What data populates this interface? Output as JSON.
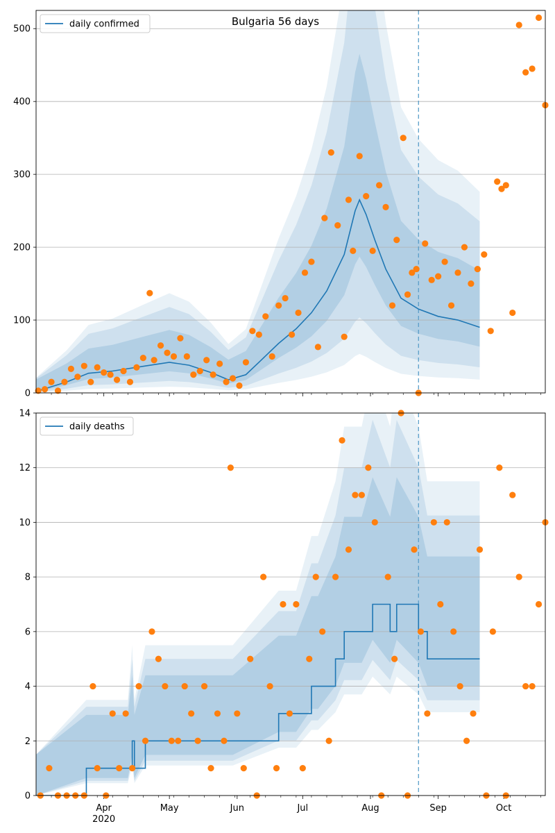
{
  "chart_data": [
    {
      "type": "line",
      "title": "Bulgaria 56 days",
      "legend": {
        "label": "daily confirmed",
        "placement": "upper-left"
      },
      "x_start": "2020-03-01",
      "x_end": "2020-10-20",
      "ylim": [
        0,
        525
      ],
      "yticks": [
        0,
        100,
        200,
        300,
        400,
        500
      ],
      "grid": "horizontal",
      "forecast_start": "2020-08-23",
      "series": [
        {
          "name": "daily confirmed",
          "style": "line",
          "color": "#1f77b4",
          "x": [
            "2020-03-01",
            "2020-03-15",
            "2020-03-25",
            "2020-04-05",
            "2020-04-20",
            "2020-05-01",
            "2020-05-10",
            "2020-05-20",
            "2020-05-28",
            "2020-06-05",
            "2020-06-12",
            "2020-06-20",
            "2020-06-28",
            "2020-07-05",
            "2020-07-12",
            "2020-07-20",
            "2020-07-25",
            "2020-07-27",
            "2020-07-30",
            "2020-08-03",
            "2020-08-08",
            "2020-08-15",
            "2020-08-23",
            "2020-09-01",
            "2020-09-10",
            "2020-09-20"
          ],
          "y": [
            2,
            15,
            27,
            30,
            37,
            42,
            38,
            28,
            18,
            25,
            45,
            68,
            88,
            110,
            140,
            190,
            250,
            265,
            245,
            210,
            170,
            130,
            115,
            105,
            100,
            90
          ]
        },
        {
          "name": "observed",
          "style": "scatter",
          "color": "#ff7f0e",
          "x": [
            "2020-03-02",
            "2020-03-05",
            "2020-03-08",
            "2020-03-11",
            "2020-03-14",
            "2020-03-17",
            "2020-03-20",
            "2020-03-23",
            "2020-03-26",
            "2020-03-29",
            "2020-04-01",
            "2020-04-04",
            "2020-04-07",
            "2020-04-10",
            "2020-04-13",
            "2020-04-16",
            "2020-04-19",
            "2020-04-22",
            "2020-04-24",
            "2020-04-27",
            "2020-04-30",
            "2020-05-03",
            "2020-05-06",
            "2020-05-09",
            "2020-05-12",
            "2020-05-15",
            "2020-05-18",
            "2020-05-21",
            "2020-05-24",
            "2020-05-27",
            "2020-05-30",
            "2020-06-02",
            "2020-06-05",
            "2020-06-08",
            "2020-06-11",
            "2020-06-14",
            "2020-06-17",
            "2020-06-20",
            "2020-06-23",
            "2020-06-26",
            "2020-06-29",
            "2020-07-02",
            "2020-07-05",
            "2020-07-08",
            "2020-07-11",
            "2020-07-14",
            "2020-07-17",
            "2020-07-20",
            "2020-07-22",
            "2020-07-24",
            "2020-07-27",
            "2020-07-30",
            "2020-08-02",
            "2020-08-05",
            "2020-08-08",
            "2020-08-11",
            "2020-08-13",
            "2020-08-16",
            "2020-08-18",
            "2020-08-20",
            "2020-08-22",
            "2020-08-23",
            "2020-08-26",
            "2020-08-29",
            "2020-09-01",
            "2020-09-04",
            "2020-09-07",
            "2020-09-10",
            "2020-09-13",
            "2020-09-16",
            "2020-09-19",
            "2020-09-22",
            "2020-09-25",
            "2020-09-28",
            "2020-09-30",
            "2020-10-02",
            "2020-10-05",
            "2020-10-08",
            "2020-10-11",
            "2020-10-14",
            "2020-10-17",
            "2020-10-20"
          ],
          "y": [
            3,
            5,
            15,
            3,
            15,
            33,
            22,
            37,
            15,
            35,
            28,
            25,
            18,
            30,
            15,
            35,
            48,
            137,
            45,
            65,
            55,
            50,
            75,
            50,
            25,
            30,
            45,
            25,
            40,
            15,
            20,
            10,
            42,
            85,
            80,
            105,
            50,
            120,
            130,
            80,
            110,
            165,
            180,
            63,
            240,
            330,
            230,
            77,
            265,
            195,
            325,
            270,
            195,
            285,
            255,
            120,
            210,
            350,
            135,
            165,
            170,
            0,
            205,
            155,
            160,
            180,
            120,
            165,
            200,
            150,
            170,
            190,
            85,
            290,
            280,
            285,
            110,
            505,
            440,
            445,
            515,
            395
          ]
        }
      ]
    },
    {
      "type": "line",
      "legend": {
        "label": "daily deaths",
        "placement": "upper-left"
      },
      "x_start": "2020-03-01",
      "x_end": "2020-10-20",
      "ylim": [
        0,
        14
      ],
      "yticks": [
        0,
        2,
        4,
        6,
        8,
        10,
        12,
        14
      ],
      "xticks": [
        "Apr",
        "May",
        "Jun",
        "Jul",
        "Aug",
        "Sep",
        "Oct"
      ],
      "xtick_dates": [
        "2020-04-01",
        "2020-05-01",
        "2020-06-01",
        "2020-07-01",
        "2020-08-01",
        "2020-09-01",
        "2020-10-01"
      ],
      "year_label": "2020",
      "grid": "horizontal",
      "forecast_start": "2020-08-23",
      "series": [
        {
          "name": "daily deaths",
          "style": "step",
          "color": "#1f77b4",
          "x": [
            "2020-03-01",
            "2020-03-24",
            "2020-04-12",
            "2020-04-14",
            "2020-04-15",
            "2020-04-20",
            "2020-05-10",
            "2020-05-20",
            "2020-05-30",
            "2020-06-20",
            "2020-06-28",
            "2020-07-05",
            "2020-07-08",
            "2020-07-16",
            "2020-07-20",
            "2020-07-28",
            "2020-08-02",
            "2020-08-10",
            "2020-08-13",
            "2020-08-23",
            "2020-08-27",
            "2020-09-01",
            "2020-09-20"
          ],
          "y": [
            0,
            1,
            1,
            2,
            1,
            2,
            2,
            2,
            2,
            3,
            3,
            4,
            4,
            5,
            6,
            6,
            7,
            6,
            7,
            6,
            5,
            5,
            5
          ]
        },
        {
          "name": "observed",
          "style": "scatter",
          "color": "#ff7f0e",
          "x": [
            "2020-03-03",
            "2020-03-07",
            "2020-03-11",
            "2020-03-15",
            "2020-03-19",
            "2020-03-23",
            "2020-03-27",
            "2020-03-29",
            "2020-04-02",
            "2020-04-05",
            "2020-04-08",
            "2020-04-11",
            "2020-04-14",
            "2020-04-17",
            "2020-04-20",
            "2020-04-23",
            "2020-04-26",
            "2020-04-29",
            "2020-05-02",
            "2020-05-05",
            "2020-05-08",
            "2020-05-11",
            "2020-05-14",
            "2020-05-17",
            "2020-05-20",
            "2020-05-23",
            "2020-05-26",
            "2020-05-29",
            "2020-06-01",
            "2020-06-04",
            "2020-06-07",
            "2020-06-10",
            "2020-06-13",
            "2020-06-16",
            "2020-06-19",
            "2020-06-22",
            "2020-06-25",
            "2020-06-28",
            "2020-07-01",
            "2020-07-04",
            "2020-07-07",
            "2020-07-10",
            "2020-07-13",
            "2020-07-16",
            "2020-07-19",
            "2020-07-22",
            "2020-07-25",
            "2020-07-28",
            "2020-07-31",
            "2020-08-03",
            "2020-08-06",
            "2020-08-09",
            "2020-08-12",
            "2020-08-15",
            "2020-08-18",
            "2020-08-21",
            "2020-08-24",
            "2020-08-27",
            "2020-08-30",
            "2020-09-02",
            "2020-09-05",
            "2020-09-08",
            "2020-09-11",
            "2020-09-14",
            "2020-09-17",
            "2020-09-20",
            "2020-09-23",
            "2020-09-26",
            "2020-09-29",
            "2020-10-02",
            "2020-10-05",
            "2020-10-08",
            "2020-10-11",
            "2020-10-14",
            "2020-10-17",
            "2020-10-20"
          ],
          "y": [
            0,
            1,
            0,
            0,
            0,
            0,
            4,
            1,
            0,
            3,
            1,
            3,
            1,
            4,
            2,
            6,
            5,
            4,
            2,
            2,
            4,
            3,
            2,
            4,
            1,
            3,
            2,
            12,
            3,
            1,
            5,
            0,
            8,
            4,
            1,
            7,
            3,
            7,
            1,
            5,
            8,
            6,
            2,
            8,
            13,
            9,
            11,
            11,
            12,
            10,
            0,
            8,
            5,
            14,
            0,
            9,
            6,
            3,
            10,
            7,
            10,
            6,
            4,
            2,
            3,
            9,
            0,
            6,
            12,
            0,
            11,
            8,
            4,
            4,
            7,
            10
          ]
        }
      ]
    }
  ]
}
